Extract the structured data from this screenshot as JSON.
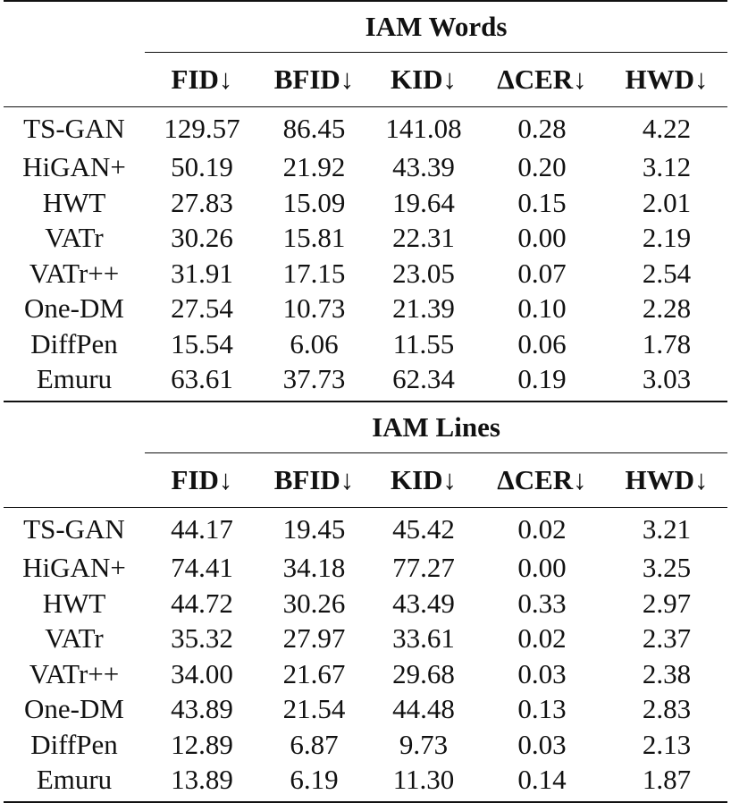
{
  "sections": [
    {
      "title": "IAM Words",
      "columns": [
        "FID↓",
        "BFID↓",
        "KID↓",
        "ΔCER↓",
        "HWD↓"
      ],
      "rows": [
        {
          "method": "TS-GAN",
          "values": [
            "129.57",
            "86.45",
            "141.08",
            "0.28",
            "4.22"
          ],
          "bold": [
            false,
            false,
            false,
            false,
            false
          ]
        },
        {
          "method": "HiGAN+",
          "values": [
            "50.19",
            "21.92",
            "43.39",
            "0.20",
            "3.12"
          ],
          "bold": [
            false,
            false,
            false,
            false,
            false
          ]
        },
        {
          "method": "HWT",
          "values": [
            "27.83",
            "15.09",
            "19.64",
            "0.15",
            "2.01"
          ],
          "bold": [
            false,
            false,
            false,
            false,
            false
          ]
        },
        {
          "method": "VATr",
          "values": [
            "30.26",
            "15.81",
            "22.31",
            "0.00",
            "2.19"
          ],
          "bold": [
            false,
            false,
            false,
            true,
            false
          ]
        },
        {
          "method": "VATr++",
          "values": [
            "31.91",
            "17.15",
            "23.05",
            "0.07",
            "2.54"
          ],
          "bold": [
            false,
            false,
            false,
            false,
            false
          ]
        },
        {
          "method": "One-DM",
          "values": [
            "27.54",
            "10.73",
            "21.39",
            "0.10",
            "2.28"
          ],
          "bold": [
            false,
            false,
            false,
            false,
            false
          ]
        },
        {
          "method": "DiffPen",
          "values": [
            "15.54",
            "6.06",
            "11.55",
            "0.06",
            "1.78"
          ],
          "bold": [
            true,
            true,
            true,
            false,
            true
          ]
        },
        {
          "method": "Emuru",
          "values": [
            "63.61",
            "37.73",
            "62.34",
            "0.19",
            "3.03"
          ],
          "bold": [
            false,
            false,
            false,
            false,
            false
          ]
        }
      ]
    },
    {
      "title": "IAM Lines",
      "columns": [
        "FID↓",
        "BFID↓",
        "KID↓",
        "ΔCER↓",
        "HWD↓"
      ],
      "rows": [
        {
          "method": "TS-GAN",
          "values": [
            "44.17",
            "19.45",
            "45.42",
            "0.02",
            "3.21"
          ],
          "bold": [
            false,
            false,
            false,
            false,
            false
          ]
        },
        {
          "method": "HiGAN+",
          "values": [
            "74.41",
            "34.18",
            "77.27",
            "0.00",
            "3.25"
          ],
          "bold": [
            false,
            false,
            false,
            true,
            false
          ]
        },
        {
          "method": "HWT",
          "values": [
            "44.72",
            "30.26",
            "43.49",
            "0.33",
            "2.97"
          ],
          "bold": [
            false,
            false,
            false,
            false,
            false
          ]
        },
        {
          "method": "VATr",
          "values": [
            "35.32",
            "27.97",
            "33.61",
            "0.02",
            "2.37"
          ],
          "bold": [
            false,
            false,
            false,
            false,
            false
          ]
        },
        {
          "method": "VATr++",
          "values": [
            "34.00",
            "21.67",
            "29.68",
            "0.03",
            "2.38"
          ],
          "bold": [
            false,
            false,
            false,
            false,
            false
          ]
        },
        {
          "method": "One-DM",
          "values": [
            "43.89",
            "21.54",
            "44.48",
            "0.13",
            "2.83"
          ],
          "bold": [
            false,
            false,
            false,
            false,
            false
          ]
        },
        {
          "method": "DiffPen",
          "values": [
            "12.89",
            "6.87",
            "9.73",
            "0.03",
            "2.13"
          ],
          "bold": [
            true,
            false,
            true,
            false,
            false
          ]
        },
        {
          "method": "Emuru",
          "values": [
            "13.89",
            "6.19",
            "11.30",
            "0.14",
            "1.87"
          ],
          "bold": [
            false,
            true,
            false,
            false,
            true
          ]
        }
      ]
    }
  ]
}
